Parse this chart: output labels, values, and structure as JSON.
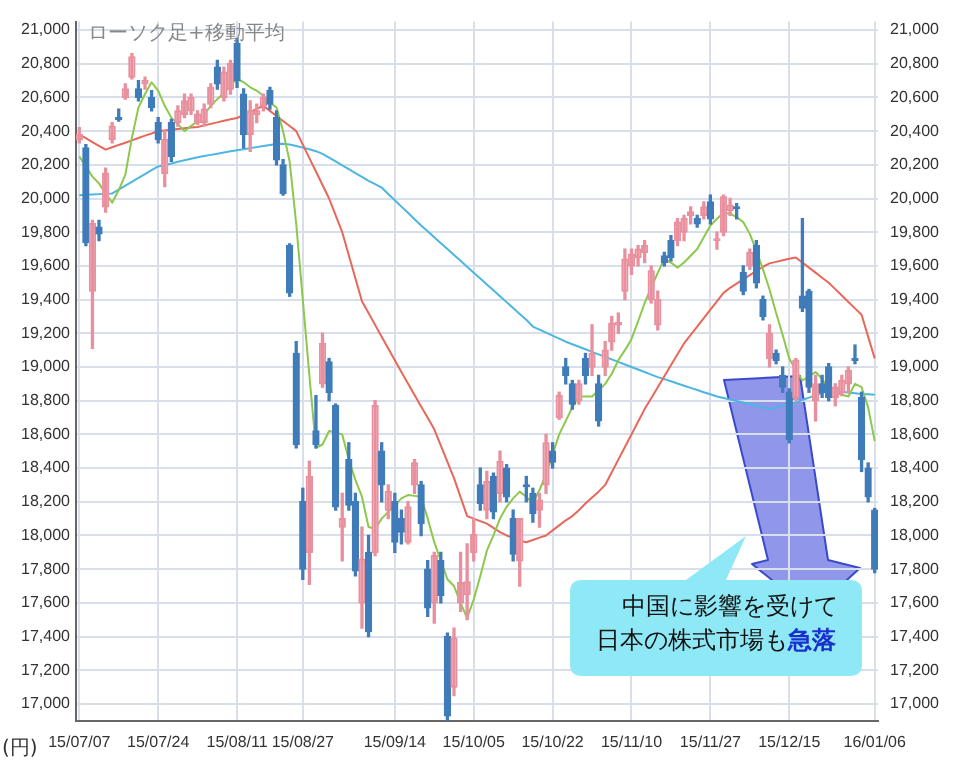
{
  "chart_data": {
    "type": "candlestick",
    "title": "ローソク足+移動平均",
    "ylabel": "(円)",
    "categories": [
      "15/07/07",
      null,
      null,
      null,
      null,
      null,
      null,
      null,
      null,
      null,
      null,
      null,
      "15/07/24",
      null,
      null,
      null,
      null,
      null,
      null,
      null,
      null,
      null,
      null,
      null,
      "15/08/11",
      null,
      null,
      null,
      null,
      null,
      null,
      null,
      null,
      null,
      "15/08/27",
      null,
      null,
      null,
      null,
      null,
      null,
      null,
      null,
      null,
      null,
      null,
      null,
      null,
      "15/09/14",
      null,
      null,
      null,
      null,
      null,
      null,
      null,
      null,
      null,
      null,
      null,
      "15/10/05",
      null,
      null,
      null,
      null,
      null,
      null,
      null,
      null,
      null,
      null,
      null,
      "15/10/22",
      null,
      null,
      null,
      null,
      null,
      null,
      null,
      null,
      null,
      null,
      null,
      "15/11/10",
      null,
      null,
      null,
      null,
      null,
      null,
      null,
      null,
      null,
      null,
      null,
      "15/11/27",
      null,
      null,
      null,
      null,
      null,
      null,
      null,
      null,
      null,
      null,
      null,
      "15/12/15",
      null,
      null,
      null,
      null,
      null,
      null,
      null,
      null,
      null,
      null,
      null,
      null,
      "16/01/06"
    ],
    "ohlc": [
      [
        20350,
        20420,
        20330,
        20380
      ],
      [
        20300,
        20320,
        19720,
        19740
      ],
      [
        19450,
        19870,
        19110,
        19850
      ],
      [
        19830,
        19870,
        19750,
        19790
      ],
      [
        19950,
        20180,
        19920,
        20150
      ],
      [
        20350,
        20450,
        20330,
        20430
      ],
      [
        20480,
        20530,
        20460,
        20470
      ],
      [
        20600,
        20680,
        20590,
        20650
      ],
      [
        20720,
        20860,
        20710,
        20840
      ],
      [
        20650,
        20700,
        20580,
        20600
      ],
      [
        20680,
        20720,
        20650,
        20700
      ],
      [
        20600,
        20640,
        20520,
        20540
      ],
      [
        20450,
        20480,
        20330,
        20350
      ],
      [
        20150,
        20400,
        20070,
        20350
      ],
      [
        20450,
        20470,
        20220,
        20250
      ],
      [
        20450,
        20550,
        20430,
        20520
      ],
      [
        20500,
        20620,
        20480,
        20580
      ],
      [
        20520,
        20620,
        20500,
        20600
      ],
      [
        20450,
        20520,
        20440,
        20500
      ],
      [
        20450,
        20560,
        20430,
        20530
      ],
      [
        20560,
        20680,
        20540,
        20660
      ],
      [
        20780,
        20820,
        20650,
        20680
      ],
      [
        20600,
        20780,
        20580,
        20750
      ],
      [
        20650,
        20820,
        20620,
        20800
      ],
      [
        20920,
        20950,
        20660,
        20700
      ],
      [
        20620,
        20650,
        20300,
        20380
      ],
      [
        20380,
        20580,
        20280,
        20520
      ],
      [
        20500,
        20560,
        20450,
        20520
      ],
      [
        20550,
        20620,
        20520,
        20600
      ],
      [
        20640,
        20660,
        20530,
        20560
      ],
      [
        20480,
        20520,
        20200,
        20230
      ],
      [
        20200,
        20230,
        20020,
        20030
      ],
      [
        19720,
        19730,
        19420,
        19440
      ],
      [
        19080,
        19150,
        18520,
        18540
      ],
      [
        18200,
        18280,
        17740,
        17800
      ],
      [
        17900,
        18440,
        17710,
        18350
      ],
      [
        18620,
        18830,
        18520,
        18540
      ],
      [
        18900,
        19200,
        18880,
        19140
      ],
      [
        19030,
        19050,
        18800,
        18850
      ],
      [
        18770,
        18780,
        18150,
        18170
      ],
      [
        18050,
        18250,
        17850,
        18100
      ],
      [
        18450,
        18550,
        18150,
        18180
      ],
      [
        18200,
        18250,
        17760,
        17790
      ],
      [
        17600,
        18050,
        17450,
        17860
      ],
      [
        17900,
        18000,
        17400,
        17430
      ],
      [
        17900,
        18800,
        17880,
        18770
      ],
      [
        18500,
        18550,
        18200,
        18300
      ],
      [
        18150,
        18300,
        18100,
        18260
      ],
      [
        18200,
        18250,
        17900,
        17960
      ],
      [
        18100,
        18150,
        17950,
        18020
      ],
      [
        17960,
        18200,
        17950,
        18170
      ],
      [
        18300,
        18450,
        18250,
        18430
      ],
      [
        18300,
        18320,
        18000,
        18070
      ],
      [
        17800,
        17850,
        17520,
        17570
      ],
      [
        17600,
        17900,
        17480,
        17880
      ],
      [
        17850,
        17900,
        17600,
        17645
      ],
      [
        17400,
        17420,
        16900,
        16930
      ],
      [
        17100,
        17450,
        17050,
        17390
      ],
      [
        17600,
        17900,
        17550,
        17720
      ],
      [
        17650,
        17950,
        17500,
        17725
      ],
      [
        17900,
        18100,
        17850,
        18005
      ],
      [
        18300,
        18400,
        18150,
        18190
      ],
      [
        18150,
        18380,
        18100,
        18320
      ],
      [
        18350,
        18370,
        18100,
        18140
      ],
      [
        18250,
        18500,
        18200,
        18440
      ],
      [
        18400,
        18420,
        18200,
        18230
      ],
      [
        18100,
        18150,
        17850,
        17890
      ],
      [
        17850,
        18100,
        17700,
        18100
      ],
      [
        18300,
        18350,
        18200,
        18290
      ],
      [
        18250,
        18280,
        18080,
        18130
      ],
      [
        18150,
        18250,
        18050,
        18210
      ],
      [
        18300,
        18600,
        18250,
        18550
      ],
      [
        18500,
        18550,
        18400,
        18435
      ],
      [
        18700,
        18850,
        18690,
        18830
      ],
      [
        19000,
        19050,
        18900,
        18950
      ],
      [
        18900,
        18920,
        18750,
        18780
      ],
      [
        18800,
        18920,
        18780,
        18900
      ],
      [
        19050,
        19080,
        18900,
        18950
      ],
      [
        19000,
        19250,
        18950,
        19080
      ],
      [
        18900,
        18950,
        18650,
        18680
      ],
      [
        19000,
        19150,
        18950,
        19100
      ],
      [
        19150,
        19300,
        19100,
        19260
      ],
      [
        19250,
        19320,
        19200,
        19265
      ],
      [
        19450,
        19700,
        19400,
        19640
      ],
      [
        19600,
        19700,
        19550,
        19670
      ],
      [
        19650,
        19720,
        19600,
        19700
      ],
      [
        19680,
        19750,
        19620,
        19720
      ],
      [
        19400,
        19600,
        19380,
        19570
      ],
      [
        19250,
        19450,
        19220,
        19400
      ],
      [
        19660,
        19680,
        19600,
        19620
      ],
      [
        19750,
        19780,
        19630,
        19650
      ],
      [
        19750,
        19880,
        19720,
        19860
      ],
      [
        19800,
        19900,
        19750,
        19880
      ],
      [
        19900,
        19950,
        19850,
        19920
      ],
      [
        19880,
        19900,
        19830,
        19850
      ],
      [
        19900,
        19980,
        19880,
        19950
      ],
      [
        19980,
        20020,
        19850,
        19880
      ],
      [
        19750,
        19800,
        19700,
        19760
      ],
      [
        19800,
        20020,
        19780,
        20010
      ],
      [
        19930,
        20000,
        19900,
        19960
      ],
      [
        19950,
        19970,
        19880,
        19940
      ],
      [
        19560,
        19600,
        19430,
        19450
      ],
      [
        19600,
        19700,
        19580,
        19680
      ],
      [
        19720,
        19750,
        19470,
        19500
      ],
      [
        19400,
        19420,
        19280,
        19300
      ],
      [
        19050,
        19250,
        19000,
        19200
      ],
      [
        19080,
        19100,
        19020,
        19040
      ],
      [
        18950,
        19000,
        18850,
        18880
      ],
      [
        18850,
        18870,
        18550,
        18570
      ],
      [
        18820,
        19050,
        18800,
        19040
      ],
      [
        19420,
        19880,
        19330,
        19350
      ],
      [
        19450,
        19460,
        18850,
        18880
      ],
      [
        18800,
        18950,
        18680,
        18900
      ],
      [
        18900,
        18950,
        18820,
        18850
      ],
      [
        19000,
        19020,
        18800,
        18820
      ],
      [
        18820,
        18900,
        18770,
        18880
      ],
      [
        18850,
        18950,
        18830,
        18920
      ],
      [
        18900,
        19000,
        18850,
        18980
      ],
      [
        19050,
        19130,
        19020,
        19040
      ],
      [
        18820,
        18850,
        18380,
        18450
      ],
      [
        18400,
        18430,
        18200,
        18230
      ],
      [
        18150,
        18160,
        17780,
        17800
      ]
    ],
    "colors": [
      "#e8909e",
      "#3f7cb9",
      "#e8909e",
      "#3f7cb9",
      "#e8909e",
      "#e8909e",
      "#3f7cb9",
      "#e8909e",
      "#e8909e",
      "#3f7cb9",
      "#e8909e",
      "#3f7cb9",
      "#3f7cb9",
      "#e8909e",
      "#3f7cb9",
      "#e8909e",
      "#e8909e",
      "#e8909e",
      "#e8909e",
      "#e8909e",
      "#e8909e",
      "#3f7cb9",
      "#e8909e",
      "#e8909e",
      "#3f7cb9",
      "#3f7cb9",
      "#e8909e",
      "#e8909e",
      "#e8909e",
      "#3f7cb9",
      "#3f7cb9",
      "#3f7cb9",
      "#3f7cb9",
      "#3f7cb9",
      "#3f7cb9",
      "#e8909e",
      "#3f7cb9",
      "#e8909e",
      "#3f7cb9",
      "#3f7cb9",
      "#e8909e",
      "#3f7cb9",
      "#3f7cb9",
      "#e8909e",
      "#3f7cb9",
      "#e8909e",
      "#3f7cb9",
      "#e8909e",
      "#3f7cb9",
      "#3f7cb9",
      "#e8909e",
      "#e8909e",
      "#3f7cb9",
      "#3f7cb9",
      "#e8909e",
      "#3f7cb9",
      "#3f7cb9",
      "#e8909e",
      "#e8909e",
      "#e8909e",
      "#e8909e",
      "#3f7cb9",
      "#e8909e",
      "#3f7cb9",
      "#e8909e",
      "#3f7cb9",
      "#3f7cb9",
      "#e8909e",
      "#3f7cb9",
      "#3f7cb9",
      "#e8909e",
      "#e8909e",
      "#3f7cb9",
      "#e8909e",
      "#3f7cb9",
      "#3f7cb9",
      "#e8909e",
      "#3f7cb9",
      "#e8909e",
      "#3f7cb9",
      "#e8909e",
      "#e8909e",
      "#e8909e",
      "#e8909e",
      "#e8909e",
      "#e8909e",
      "#e8909e",
      "#e8909e",
      "#e8909e",
      "#3f7cb9",
      "#3f7cb9",
      "#e8909e",
      "#e8909e",
      "#e8909e",
      "#3f7cb9",
      "#e8909e",
      "#3f7cb9",
      "#e8909e",
      "#e8909e",
      "#e8909e",
      "#3f7cb9",
      "#3f7cb9",
      "#e8909e",
      "#3f7cb9",
      "#3f7cb9",
      "#e8909e",
      "#3f7cb9",
      "#3f7cb9",
      "#3f7cb9",
      "#e8909e",
      "#3f7cb9",
      "#3f7cb9",
      "#e8909e",
      "#3f7cb9",
      "#3f7cb9",
      "#e8909e",
      "#e8909e",
      "#e8909e",
      "#3f7cb9",
      "#3f7cb9",
      "#3f7cb9",
      "#3f7cb9"
    ],
    "series": [
      {
        "type": "line",
        "color": "#8cc84b",
        "values": [
          20250,
          20190,
          20130,
          20090,
          20030,
          19975,
          20050,
          20140,
          20360,
          20540,
          20620,
          20690,
          20640,
          20550,
          20480,
          20440,
          20400,
          20430,
          20460,
          20500,
          20550,
          20590,
          20625,
          20670,
          20710,
          20690,
          20660,
          20640,
          20610,
          20570,
          20540,
          20400,
          20220,
          19850,
          19400,
          18950,
          18520,
          18540,
          18620,
          18610,
          18600,
          18450,
          18330,
          18230,
          18050,
          18040,
          18100,
          18140,
          18180,
          18220,
          18240,
          18235,
          18230,
          18100,
          17960,
          17850,
          17740,
          17700,
          17600,
          17510,
          17620,
          17760,
          17910,
          18000,
          18100,
          18170,
          18220,
          18260,
          18230,
          18190,
          18270,
          18360,
          18480,
          18600,
          18680,
          18760,
          18825,
          18825,
          18825,
          18860,
          18900,
          18960,
          19040,
          19100,
          19165,
          19270,
          19380,
          19470,
          19560,
          19640,
          19620,
          19590,
          19620,
          19660,
          19700,
          19770,
          19840,
          19880,
          19915,
          19910,
          19890,
          19860,
          19790,
          19690,
          19580,
          19460,
          19320,
          19190,
          19050,
          18980,
          18920,
          18945,
          18970,
          18930,
          18870,
          18850,
          18835,
          18825,
          18900,
          18880,
          18760,
          18560
        ]
      },
      {
        "type": "line",
        "color": "#e8675a",
        "values": [
          20380,
          20358,
          20335,
          20313,
          20290,
          20304,
          20318,
          20331,
          20345,
          20359,
          20373,
          20386,
          20400,
          20404,
          20408,
          20413,
          20417,
          20421,
          20425,
          20434,
          20443,
          20452,
          20461,
          20470,
          20478,
          20496,
          20514,
          20532,
          20550,
          20520,
          20490,
          20460,
          20430,
          20400,
          20320,
          20240,
          20160,
          20080,
          20000,
          19900,
          19800,
          19663,
          19527,
          19390,
          19320,
          19250,
          19180,
          19110,
          19040,
          18970,
          18902,
          18834,
          18766,
          18698,
          18630,
          18533,
          18437,
          18340,
          18228,
          18115,
          18100,
          18085,
          18070,
          18045,
          18020,
          18000,
          17985,
          17970,
          17960,
          17973,
          17987,
          18000,
          18030,
          18060,
          18090,
          18115,
          18150,
          18190,
          18225,
          18260,
          18300,
          18375,
          18450,
          18525,
          18600,
          18675,
          18750,
          18815,
          18880,
          18945,
          19010,
          19075,
          19140,
          19190,
          19240,
          19290,
          19340,
          19390,
          19440,
          19470,
          19495,
          19520,
          19545,
          19570,
          19595,
          19615,
          19624,
          19633,
          19642,
          19650,
          19620,
          19590,
          19560,
          19530,
          19500,
          19462,
          19424,
          19386,
          19348,
          19310,
          19180,
          19050
        ]
      },
      {
        "type": "line",
        "color": "#4cb6e0",
        "values": [
          20020,
          20022,
          20024,
          20026,
          20028,
          20030,
          20053,
          20076,
          20099,
          20122,
          20145,
          20168,
          20190,
          20199,
          20208,
          20218,
          20227,
          20236,
          20245,
          20252,
          20259,
          20266,
          20273,
          20280,
          20287,
          20293,
          20299,
          20305,
          20311,
          20317,
          20323,
          20325,
          20320,
          20312,
          20302,
          20292,
          20281,
          20265,
          20243,
          20220,
          20197,
          20174,
          20151,
          20128,
          20105,
          20085,
          20065,
          20027,
          19990,
          19952,
          19915,
          19877,
          19840,
          19805,
          19770,
          19735,
          19700,
          19665,
          19630,
          19595,
          19560,
          19525,
          19490,
          19455,
          19420,
          19385,
          19350,
          19315,
          19280,
          19240,
          19222,
          19204,
          19186,
          19168,
          19150,
          19135,
          19120,
          19105,
          19090,
          19075,
          19060,
          19045,
          19030,
          19015,
          19000,
          18985,
          18970,
          18955,
          18940,
          18928,
          18915,
          18902,
          18889,
          18876,
          18863,
          18850,
          18838,
          18825,
          18816,
          18807,
          18798,
          18789,
          18780,
          18770,
          18760,
          18750,
          18760,
          18770,
          18780,
          18790,
          18804,
          18818,
          18832,
          18846,
          18860,
          18856,
          18852,
          18848,
          18844,
          18840,
          18838,
          18835
        ]
      }
    ],
    "ylim": [
      16900,
      21050
    ],
    "yticks": [
      {
        "value": 17000,
        "label": "17,000"
      },
      {
        "value": 17200,
        "label": "17,200"
      },
      {
        "value": 17400,
        "label": "17,400"
      },
      {
        "value": 17600,
        "label": "17,600"
      },
      {
        "value": 17800,
        "label": "17,800"
      },
      {
        "value": 18000,
        "label": "18,000"
      },
      {
        "value": 18200,
        "label": "18,200"
      },
      {
        "value": 18400,
        "label": "18,400"
      },
      {
        "value": 18600,
        "label": "18,600"
      },
      {
        "value": 18800,
        "label": "18,800"
      },
      {
        "value": 19000,
        "label": "19,000"
      },
      {
        "value": 19200,
        "label": "19,200"
      },
      {
        "value": 19400,
        "label": "19,400"
      },
      {
        "value": 19600,
        "label": "19,600"
      },
      {
        "value": 19800,
        "label": "19,800"
      },
      {
        "value": 20000,
        "label": "20,000"
      },
      {
        "value": 20200,
        "label": "20,200"
      },
      {
        "value": 20400,
        "label": "20,400"
      },
      {
        "value": 20600,
        "label": "20,600"
      },
      {
        "value": 20800,
        "label": "20,800"
      },
      {
        "value": 21000,
        "label": "21,000"
      }
    ],
    "y2lim": [
      16900,
      21050
    ],
    "y2ticks": [
      {
        "value": 17000,
        "label": "17,000"
      },
      {
        "value": 17200,
        "label": "17,200"
      },
      {
        "value": 17400,
        "label": "17,400"
      },
      {
        "value": 17600,
        "label": "17,600"
      },
      {
        "value": 17800,
        "label": "17,800"
      },
      {
        "value": 18000,
        "label": "18,000"
      },
      {
        "value": 18200,
        "label": "18,200"
      },
      {
        "value": 18400,
        "label": "18,400"
      },
      {
        "value": 18600,
        "label": "18,600"
      },
      {
        "value": 18800,
        "label": "18,800"
      },
      {
        "value": 19000,
        "label": "19,000"
      },
      {
        "value": 19200,
        "label": "19,200"
      },
      {
        "value": 19400,
        "label": "19,400"
      },
      {
        "value": 19600,
        "label": "19,600"
      },
      {
        "value": 19800,
        "label": "19,800"
      },
      {
        "value": 20000,
        "label": "20,000"
      },
      {
        "value": 20200,
        "label": "20,200"
      },
      {
        "value": 20400,
        "label": "20,400"
      },
      {
        "value": 20600,
        "label": "20,600"
      },
      {
        "value": 20800,
        "label": "20,800"
      },
      {
        "value": 21000,
        "label": "21,000"
      }
    ],
    "grid": true,
    "annotations": [
      "中国に影響を受けて日本の株式市場も急落"
    ]
  }
}
